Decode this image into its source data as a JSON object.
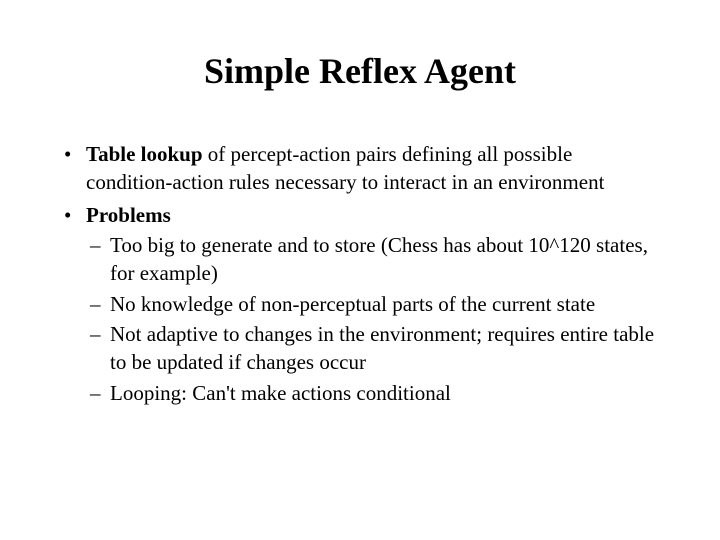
{
  "background_color": "#ffffff",
  "text_color": "#000000",
  "font_family": "Times New Roman",
  "title": {
    "text": "Simple Reflex Agent",
    "fontsize": 36,
    "weight": "bold",
    "align": "center"
  },
  "body_fontsize": 21,
  "bullets": [
    {
      "bold_lead": "Table lookup",
      "rest": " of percept-action pairs defining all possible condition-action rules necessary to interact in an environment"
    },
    {
      "bold_lead": "Problems",
      "rest": "",
      "sub": [
        "Too big to generate and to store (Chess has about 10^120 states, for example)",
        "No knowledge of non-perceptual parts of the current state",
        "Not adaptive to changes in the environment; requires entire table to be updated if changes occur",
        "Looping: Can't make actions conditional"
      ]
    }
  ]
}
